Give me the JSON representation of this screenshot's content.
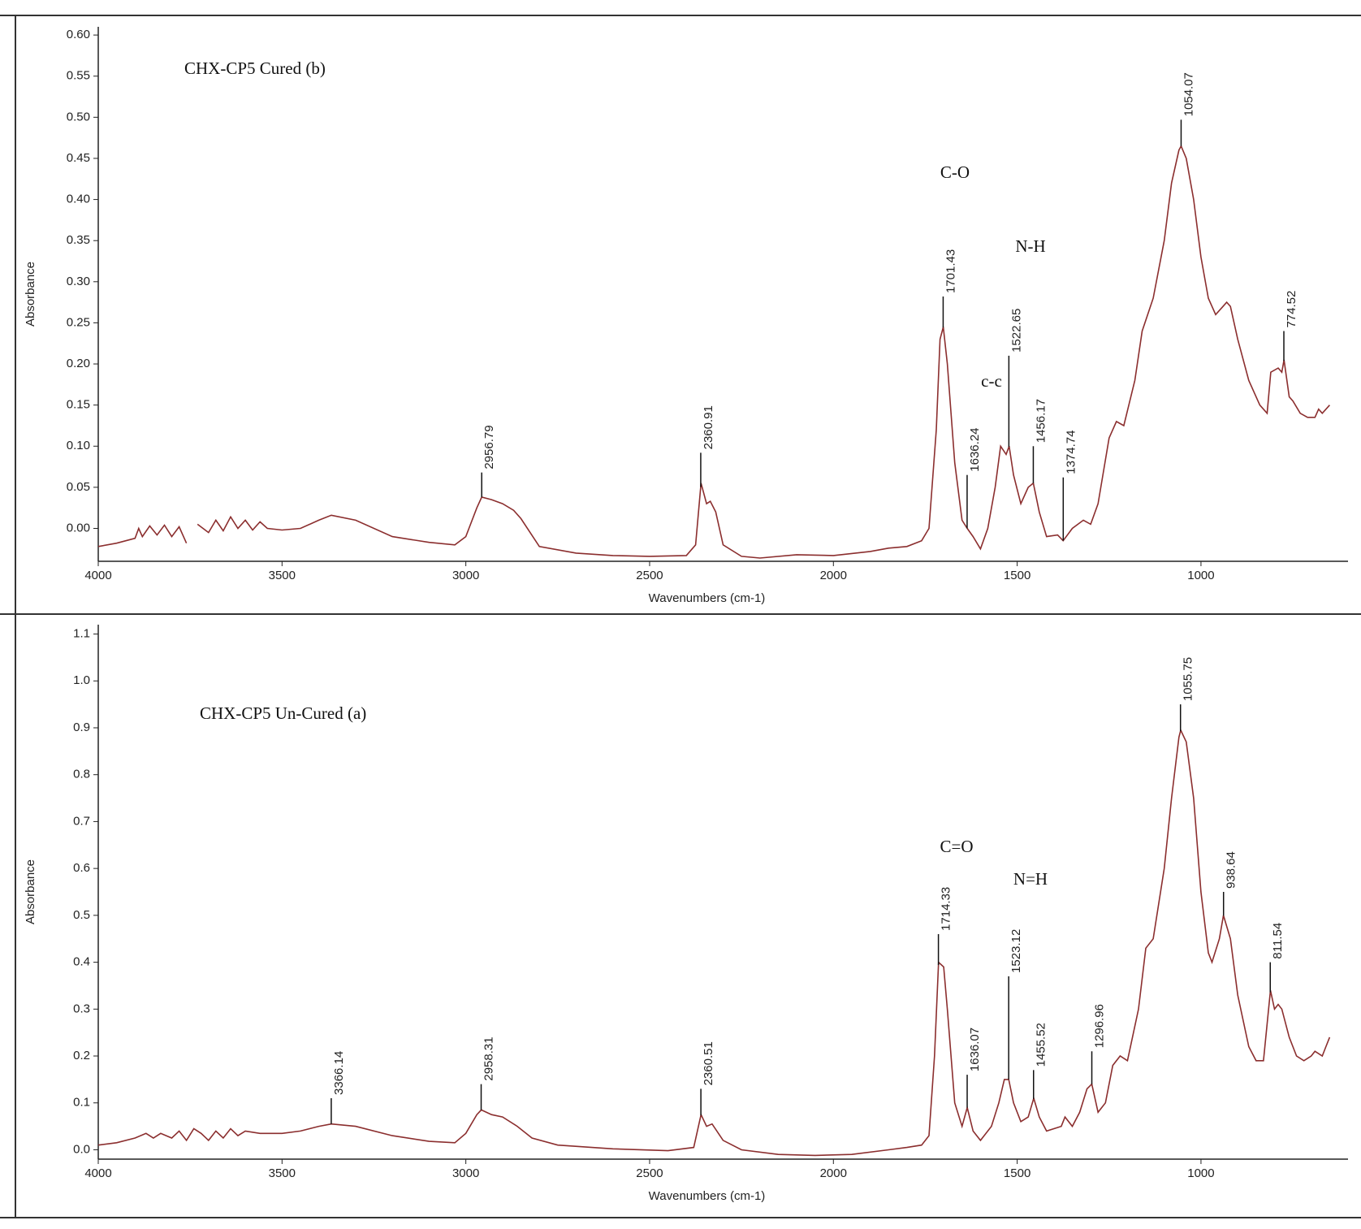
{
  "chart_data": [
    {
      "type": "line",
      "title": "CHX-CP5 Cured (b)",
      "x_label": "Wavenumbers (cm-1)",
      "y_label": "Absorbance",
      "annotations": [
        "C-O",
        "N-H",
        "c-c"
      ],
      "color": "#8b2e2e",
      "xlim": [
        4000,
        600
      ],
      "xticks": [
        4000,
        3500,
        3000,
        2500,
        2000,
        1500,
        1000
      ],
      "ylim": [
        -0.04,
        0.61
      ],
      "yticks": [
        {
          "value": 0,
          "label": "0.00"
        },
        {
          "value": 0.05,
          "label": "0.05"
        },
        {
          "value": 0.1,
          "label": "0.10"
        },
        {
          "value": 0.15,
          "label": "0.15"
        },
        {
          "value": 0.2,
          "label": "0.20"
        },
        {
          "value": 0.25,
          "label": "0.25"
        },
        {
          "value": 0.3,
          "label": "0.30"
        },
        {
          "value": 0.35,
          "label": "0.35"
        },
        {
          "value": 0.4,
          "label": "0.40"
        },
        {
          "value": 0.45,
          "label": "0.45"
        },
        {
          "value": 0.5,
          "label": "0.50"
        },
        {
          "value": 0.55,
          "label": "0.55"
        },
        {
          "value": 0.6,
          "label": "0.60"
        }
      ],
      "x": [
        4000,
        3950,
        3900,
        3890,
        3880,
        3860,
        3840,
        3820,
        3800,
        3780,
        3760,
        3745,
        3730,
        3700,
        3680,
        3660,
        3640,
        3620,
        3600,
        3580,
        3560,
        3540,
        3500,
        3450,
        3400,
        3366,
        3300,
        3200,
        3100,
        3030,
        3000,
        2970,
        2956.79,
        2930,
        2900,
        2870,
        2850,
        2800,
        2700,
        2600,
        2500,
        2400,
        2375,
        2360,
        2345,
        2335,
        2320,
        2300,
        2250,
        2200,
        2100,
        2000,
        1900,
        1850,
        1800,
        1760,
        1740,
        1720,
        1710,
        1701,
        1690,
        1670,
        1650,
        1636,
        1620,
        1600,
        1580,
        1560,
        1545,
        1530,
        1522,
        1510,
        1490,
        1470,
        1456,
        1440,
        1420,
        1390,
        1375,
        1350,
        1320,
        1300,
        1280,
        1250,
        1230,
        1210,
        1180,
        1160,
        1130,
        1100,
        1080,
        1060,
        1054,
        1040,
        1020,
        1000,
        980,
        960,
        940,
        930,
        920,
        900,
        870,
        840,
        820,
        810,
        790,
        780,
        774,
        760,
        750,
        730,
        710,
        690,
        680,
        670,
        650
      ],
      "values": [
        -0.022,
        -0.018,
        -0.012,
        0.0,
        -0.01,
        0.003,
        -0.008,
        0.004,
        -0.01,
        0.002,
        -0.018,
        null,
        0.005,
        -0.005,
        0.01,
        -0.003,
        0.014,
        0.0,
        0.01,
        -0.002,
        0.008,
        0.0,
        -0.002,
        0.0,
        0.01,
        0.016,
        0.01,
        -0.01,
        -0.017,
        -0.02,
        -0.01,
        0.025,
        0.038,
        0.035,
        0.03,
        0.022,
        0.012,
        -0.022,
        -0.03,
        -0.033,
        -0.034,
        -0.033,
        -0.02,
        0.055,
        0.03,
        0.033,
        0.02,
        -0.02,
        -0.034,
        -0.036,
        -0.032,
        -0.033,
        -0.028,
        -0.024,
        -0.022,
        -0.015,
        0.0,
        0.12,
        0.23,
        0.245,
        0.2,
        0.08,
        0.01,
        0.0,
        -0.01,
        -0.025,
        0.0,
        0.05,
        0.1,
        0.09,
        0.1,
        0.065,
        0.03,
        0.05,
        0.055,
        0.02,
        -0.01,
        -0.008,
        -0.015,
        0.0,
        0.01,
        0.005,
        0.03,
        0.11,
        0.13,
        0.125,
        0.18,
        0.24,
        0.28,
        0.35,
        0.42,
        0.46,
        0.465,
        0.45,
        0.4,
        0.33,
        0.28,
        0.26,
        0.27,
        0.275,
        0.27,
        0.23,
        0.18,
        0.15,
        0.14,
        0.19,
        0.195,
        0.19,
        0.205,
        0.16,
        0.155,
        0.14,
        0.135,
        0.135,
        0.145,
        0.14,
        0.15
      ],
      "peaks": [
        {
          "x": 2956.79,
          "y": 0.068
        },
        {
          "x": 2360.91,
          "y": 0.092
        },
        {
          "x": 1701.43,
          "y": 0.282
        },
        {
          "x": 1636.24,
          "y": 0.065
        },
        {
          "x": 1522.65,
          "y": 0.21
        },
        {
          "x": 1456.17,
          "y": 0.1
        },
        {
          "x": 1374.74,
          "y": 0.062
        },
        {
          "x": 1054.07,
          "y": 0.497
        },
        {
          "x": 774.52,
          "y": 0.24
        }
      ]
    },
    {
      "type": "line",
      "title": "CHX-CP5 Un-Cured (a)",
      "x_label": "Wavenumbers (cm-1)",
      "y_label": "Absorbance",
      "annotations": [
        "C=O",
        "N=H"
      ],
      "color": "#8b2e2e",
      "xlim": [
        4000,
        600
      ],
      "xticks": [
        4000,
        3500,
        3000,
        2500,
        2000,
        1500,
        1000
      ],
      "ylim": [
        -0.02,
        1.12
      ],
      "yticks": [
        {
          "value": 0,
          "label": "0.0"
        },
        0.1,
        0.2,
        0.3,
        0.4,
        0.5,
        0.6,
        0.7,
        0.8,
        0.9,
        {
          "value": 1,
          "label": "1.0"
        },
        1.1
      ],
      "x": [
        4000,
        3950,
        3900,
        3870,
        3850,
        3830,
        3800,
        3780,
        3760,
        3740,
        3720,
        3700,
        3680,
        3660,
        3640,
        3620,
        3600,
        3560,
        3500,
        3450,
        3400,
        3366,
        3300,
        3200,
        3100,
        3030,
        3000,
        2970,
        2958,
        2930,
        2900,
        2860,
        2820,
        2750,
        2600,
        2450,
        2380,
        2360,
        2345,
        2330,
        2300,
        2250,
        2150,
        2050,
        1950,
        1850,
        1800,
        1760,
        1740,
        1725,
        1714,
        1700,
        1690,
        1670,
        1650,
        1636,
        1620,
        1600,
        1570,
        1550,
        1535,
        1523,
        1510,
        1490,
        1470,
        1455,
        1440,
        1420,
        1380,
        1370,
        1350,
        1330,
        1310,
        1297,
        1280,
        1260,
        1240,
        1220,
        1200,
        1170,
        1150,
        1130,
        1100,
        1080,
        1060,
        1055,
        1040,
        1020,
        1000,
        980,
        970,
        950,
        939,
        920,
        900,
        870,
        850,
        830,
        811,
        800,
        790,
        780,
        760,
        740,
        720,
        700,
        690,
        670,
        660,
        650
      ],
      "values": [
        0.01,
        0.015,
        0.025,
        0.035,
        0.025,
        0.035,
        0.025,
        0.04,
        0.02,
        0.045,
        0.035,
        0.02,
        0.04,
        0.025,
        0.045,
        0.03,
        0.04,
        0.035,
        0.035,
        0.04,
        0.05,
        0.055,
        0.05,
        0.03,
        0.018,
        0.015,
        0.035,
        0.075,
        0.085,
        0.075,
        0.07,
        0.05,
        0.025,
        0.01,
        0.002,
        -0.002,
        0.005,
        0.075,
        0.05,
        0.055,
        0.02,
        0.0,
        -0.01,
        -0.012,
        -0.01,
        0.0,
        0.005,
        0.01,
        0.03,
        0.2,
        0.4,
        0.39,
        0.3,
        0.1,
        0.05,
        0.09,
        0.04,
        0.02,
        0.05,
        0.1,
        0.15,
        0.15,
        0.1,
        0.06,
        0.07,
        0.11,
        0.07,
        0.04,
        0.05,
        0.07,
        0.05,
        0.08,
        0.13,
        0.14,
        0.08,
        0.1,
        0.18,
        0.2,
        0.19,
        0.3,
        0.43,
        0.45,
        0.6,
        0.75,
        0.88,
        0.895,
        0.87,
        0.75,
        0.55,
        0.42,
        0.4,
        0.45,
        0.5,
        0.45,
        0.33,
        0.22,
        0.19,
        0.19,
        0.34,
        0.3,
        0.31,
        0.3,
        0.24,
        0.2,
        0.19,
        0.2,
        0.21,
        0.2,
        0.22,
        0.24
      ],
      "peaks": [
        {
          "x": 3366.14,
          "y": 0.11
        },
        {
          "x": 2958.31,
          "y": 0.14
        },
        {
          "x": 2360.51,
          "y": 0.13
        },
        {
          "x": 1714.33,
          "y": 0.46
        },
        {
          "x": 1636.07,
          "y": 0.16
        },
        {
          "x": 1523.12,
          "y": 0.37
        },
        {
          "x": 1455.52,
          "y": 0.17
        },
        {
          "x": 1296.96,
          "y": 0.21
        },
        {
          "x": 1055.75,
          "y": 0.95
        },
        {
          "x": 938.64,
          "y": 0.55
        },
        {
          "x": 811.54,
          "y": 0.4
        }
      ]
    }
  ]
}
